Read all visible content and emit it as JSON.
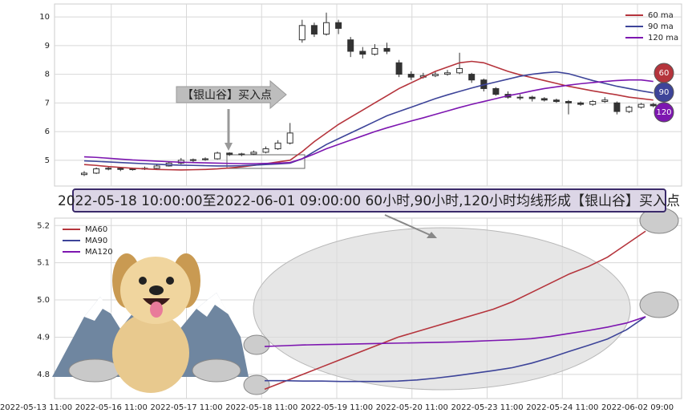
{
  "banner": "2022-05-18 10:00:00至2022-06-01 09:00:00 60小时,90小时,120小时均线形成【银山谷】买入点",
  "chart_data": [
    {
      "type": "candlestick",
      "annotation": "【银山谷】买入点",
      "candle_color": "#333333",
      "legend": "upper right",
      "ylim": [
        4.1,
        10.45
      ],
      "yticks": [
        5,
        6,
        7,
        8,
        9,
        10
      ],
      "grid": true,
      "ohlc": [
        [
          4.5,
          4.62,
          4.45,
          4.55
        ],
        [
          4.55,
          4.75,
          4.52,
          4.7
        ],
        [
          4.7,
          4.8,
          4.65,
          4.72
        ],
        [
          4.72,
          4.76,
          4.62,
          4.68
        ],
        [
          4.68,
          4.74,
          4.64,
          4.7
        ],
        [
          4.7,
          4.78,
          4.66,
          4.72
        ],
        [
          4.72,
          4.86,
          4.7,
          4.8
        ],
        [
          4.8,
          4.95,
          4.78,
          4.9
        ],
        [
          4.9,
          5.08,
          4.86,
          5
        ],
        [
          5,
          5.06,
          4.94,
          5.02
        ],
        [
          5.02,
          5.1,
          4.98,
          5.05
        ],
        [
          5.05,
          5.3,
          5.02,
          5.25
        ],
        [
          5.25,
          5.28,
          5.15,
          5.2
        ],
        [
          5.2,
          5.26,
          5.14,
          5.22
        ],
        [
          5.22,
          5.34,
          5.18,
          5.28
        ],
        [
          5.28,
          5.48,
          5.24,
          5.4
        ],
        [
          5.4,
          5.7,
          5.36,
          5.6
        ],
        [
          5.6,
          6.3,
          5.55,
          5.95
        ],
        [
          9.2,
          9.9,
          9.1,
          9.7
        ],
        [
          9.7,
          9.8,
          9.3,
          9.4
        ],
        [
          9.4,
          10.15,
          9.35,
          9.8
        ],
        [
          9.8,
          9.9,
          9.4,
          9.6
        ],
        [
          9.2,
          9.3,
          8.6,
          8.8
        ],
        [
          8.8,
          8.95,
          8.55,
          8.7
        ],
        [
          8.7,
          9.05,
          8.65,
          8.9
        ],
        [
          8.9,
          9.1,
          8.7,
          8.8
        ],
        [
          8.4,
          8.5,
          7.9,
          8
        ],
        [
          8,
          8.1,
          7.8,
          7.9
        ],
        [
          7.9,
          8.05,
          7.85,
          7.95
        ],
        [
          7.95,
          8.1,
          7.9,
          8
        ],
        [
          8,
          8.15,
          7.95,
          8.05
        ],
        [
          8.05,
          8.75,
          8,
          8.2
        ],
        [
          8,
          8.05,
          7.7,
          7.8
        ],
        [
          7.8,
          7.85,
          7.4,
          7.5
        ],
        [
          7.5,
          7.55,
          7.25,
          7.3
        ],
        [
          7.3,
          7.4,
          7.15,
          7.2
        ],
        [
          7.2,
          7.3,
          7.1,
          7.2
        ],
        [
          7.2,
          7.25,
          7.05,
          7.15
        ],
        [
          7.15,
          7.2,
          7.05,
          7.1
        ],
        [
          7.1,
          7.15,
          7,
          7.05
        ],
        [
          7.05,
          7.1,
          6.6,
          7
        ],
        [
          7,
          7.05,
          6.9,
          6.95
        ],
        [
          6.95,
          7.1,
          6.9,
          7.05
        ],
        [
          7.05,
          7.2,
          7,
          7.1
        ],
        [
          7,
          7.05,
          6.6,
          6.7
        ],
        [
          6.7,
          6.9,
          6.65,
          6.85
        ],
        [
          6.85,
          7,
          6.8,
          6.95
        ],
        [
          6.95,
          7,
          6.85,
          6.9
        ]
      ],
      "series": [
        {
          "name": "60 ma",
          "badge": "60",
          "color": "#b5343c",
          "values": [
            4.85,
            4.82,
            4.78,
            4.75,
            4.72,
            4.7,
            4.68,
            4.67,
            4.66,
            4.67,
            4.68,
            4.7,
            4.73,
            4.77,
            4.82,
            4.88,
            4.94,
            5,
            5.3,
            5.65,
            5.95,
            6.25,
            6.5,
            6.75,
            7,
            7.25,
            7.5,
            7.7,
            7.9,
            8.1,
            8.25,
            8.4,
            8.45,
            8.4,
            8.25,
            8.1,
            7.98,
            7.88,
            7.78,
            7.68,
            7.58,
            7.5,
            7.42,
            7.35,
            7.28,
            7.2,
            7.15,
            7.1
          ]
        },
        {
          "name": "90 ma",
          "badge": "90",
          "color": "#3d4499",
          "values": [
            4.98,
            4.96,
            4.94,
            4.92,
            4.9,
            4.88,
            4.86,
            4.84,
            4.83,
            4.82,
            4.81,
            4.8,
            4.8,
            4.81,
            4.83,
            4.85,
            4.87,
            4.9,
            5.05,
            5.3,
            5.55,
            5.75,
            5.95,
            6.15,
            6.35,
            6.55,
            6.7,
            6.85,
            7,
            7.15,
            7.28,
            7.4,
            7.52,
            7.63,
            7.73,
            7.83,
            7.93,
            8,
            8.05,
            8.08,
            8.02,
            7.9,
            7.78,
            7.68,
            7.58,
            7.5,
            7.42,
            7.35
          ]
        },
        {
          "name": "120 ma",
          "badge": "120",
          "color": "#7d16b0",
          "values": [
            5.12,
            5.1,
            5.07,
            5.04,
            5.01,
            4.99,
            4.97,
            4.95,
            4.93,
            4.92,
            4.91,
            4.9,
            4.89,
            4.88,
            4.88,
            4.89,
            4.9,
            4.92,
            5.05,
            5.22,
            5.4,
            5.55,
            5.7,
            5.85,
            6,
            6.13,
            6.25,
            6.37,
            6.48,
            6.6,
            6.72,
            6.84,
            6.95,
            7.05,
            7.15,
            7.25,
            7.33,
            7.42,
            7.5,
            7.56,
            7.62,
            7.67,
            7.71,
            7.75,
            7.78,
            7.8,
            7.8,
            7.75
          ]
        }
      ]
    },
    {
      "type": "line",
      "legend": "upper left",
      "grid": true,
      "x_labels": [
        "2022-05-13 11:00",
        "2022-05-16 11:00",
        "2022-05-17 11:00",
        "2022-05-18 11:00",
        "2022-05-19 11:00",
        "2022-05-20 11:00",
        "2022-05-23 11:00",
        "2022-05-24 11:00",
        "2022-06-02 09:00"
      ],
      "ylim": [
        4.735,
        5.22
      ],
      "yticks": [
        4.8,
        4.9,
        {
          "value": 5,
          "label": "5.0"
        },
        5.1,
        5.2
      ],
      "xlim": [
        -11.03,
        21.89
      ],
      "x": [
        0,
        1,
        2,
        3,
        4,
        5,
        6,
        7,
        8,
        9,
        10,
        11,
        12,
        13,
        14,
        15,
        16,
        17,
        18,
        19,
        20
      ],
      "series": [
        {
          "name": "MA60",
          "color": "#b5343c",
          "values": [
            4.76,
            4.78,
            4.8,
            4.82,
            4.84,
            4.86,
            4.88,
            4.9,
            4.915,
            4.93,
            4.945,
            4.96,
            4.975,
            4.995,
            5.02,
            5.045,
            5.07,
            5.09,
            5.115,
            5.15,
            5.185
          ]
        },
        {
          "name": "MA90",
          "color": "#3d4499",
          "values": [
            4.783,
            4.783,
            4.782,
            4.782,
            4.781,
            4.781,
            4.781,
            4.782,
            4.785,
            4.79,
            4.796,
            4.803,
            4.81,
            4.818,
            4.83,
            4.845,
            4.862,
            4.878,
            4.895,
            4.92,
            4.955
          ]
        },
        {
          "name": "MA120",
          "color": "#7d16b0",
          "values": [
            4.875,
            4.877,
            4.879,
            4.88,
            4.881,
            4.882,
            4.883,
            4.884,
            4.885,
            4.886,
            4.887,
            4.889,
            4.891,
            4.893,
            4.896,
            4.902,
            4.91,
            4.918,
            4.927,
            4.938,
            4.955
          ]
        }
      ]
    }
  ]
}
